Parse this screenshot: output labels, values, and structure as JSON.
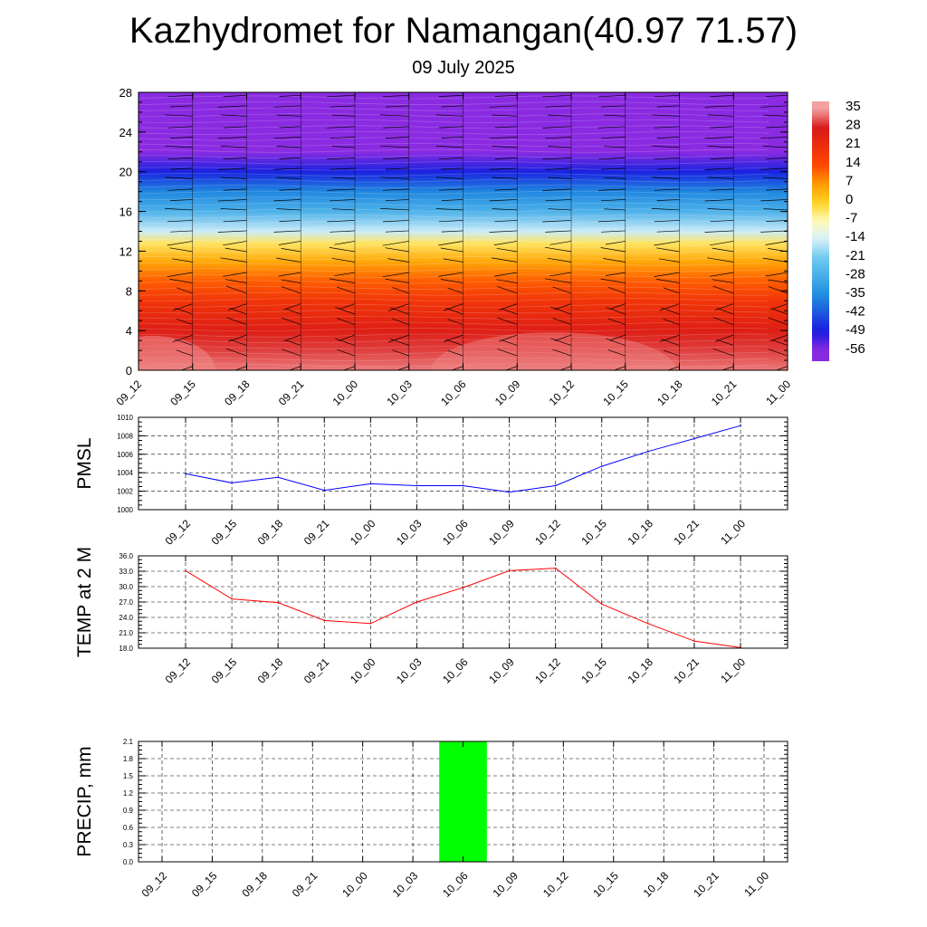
{
  "title": "Kazhydromet for Namangan(40.97 71.57)",
  "subtitle": "09 July 2025",
  "chart_data": [
    {
      "type": "heatmap",
      "name": "cross-section",
      "x_labels": [
        "09_12",
        "09_15",
        "09_18",
        "09_21",
        "10_00",
        "10_03",
        "10_06",
        "10_09",
        "10_12",
        "10_15",
        "10_18",
        "10_21",
        "11_00"
      ],
      "ylim": [
        0,
        28
      ],
      "y_ticks": [
        0,
        4,
        8,
        12,
        16,
        20,
        24,
        28
      ],
      "colorbar_labels": [
        "35",
        "28",
        "21",
        "14",
        "7",
        "0",
        "-7",
        "-14",
        "-21",
        "-28",
        "-35",
        "-42",
        "-49",
        "-56"
      ],
      "color_stops": [
        {
          "value": 35,
          "color": "#f2a0a0"
        },
        {
          "value": 28,
          "color": "#d81818"
        },
        {
          "value": 14,
          "color": "#ff4500"
        },
        {
          "value": 7,
          "color": "#ff9900"
        },
        {
          "value": 0,
          "color": "#ffd21f"
        },
        {
          "value": -7,
          "color": "#fffbb8"
        },
        {
          "value": -14,
          "color": "#d8f0fb"
        },
        {
          "value": -21,
          "color": "#6fcaf0"
        },
        {
          "value": -35,
          "color": "#1f8fe0"
        },
        {
          "value": -49,
          "color": "#1a1ae0"
        },
        {
          "value": -56,
          "color": "#8a2be2"
        }
      ],
      "temperature_profile": [
        {
          "height": 0,
          "value": 33
        },
        {
          "height": 2,
          "value": 30
        },
        {
          "height": 4,
          "value": 26
        },
        {
          "height": 7,
          "value": 19
        },
        {
          "height": 9,
          "value": 12
        },
        {
          "height": 11,
          "value": 5
        },
        {
          "height": 12.8,
          "value": -3
        },
        {
          "height": 14,
          "value": -15
        },
        {
          "height": 16,
          "value": -27
        },
        {
          "height": 18,
          "value": -36
        },
        {
          "height": 20,
          "value": -48
        },
        {
          "height": 22,
          "value": -56
        },
        {
          "height": 28,
          "value": -57
        }
      ],
      "wind_barbs": true,
      "barb_color": "#000000"
    },
    {
      "type": "line",
      "name": "pmsl",
      "ylabel": "PMSL",
      "x": [
        "09_12",
        "09_15",
        "09_18",
        "09_21",
        "10_00",
        "10_03",
        "10_06",
        "10_09",
        "10_12",
        "10_15",
        "10_18",
        "10_21",
        "11_00"
      ],
      "values": [
        1003.9,
        1002.9,
        1003.5,
        1002.1,
        1002.8,
        1002.6,
        1002.6,
        1001.9,
        1002.6,
        1004.7,
        1006.3,
        1007.7,
        1009.1
      ],
      "ylim": [
        1000,
        1010
      ],
      "y_ticks": [
        "1000",
        "1002",
        "1004",
        "1006",
        "1008",
        "1010"
      ],
      "color": "#0000ff",
      "grid": true
    },
    {
      "type": "line",
      "name": "temp2m",
      "ylabel": "TEMP at 2 M",
      "x": [
        "09_12",
        "09_15",
        "09_18",
        "09_21",
        "10_00",
        "10_03",
        "10_06",
        "10_09",
        "10_12",
        "10_15",
        "10_18",
        "10_21",
        "11_00"
      ],
      "values": [
        33.1,
        27.6,
        26.9,
        23.4,
        22.8,
        27.0,
        29.8,
        33.1,
        33.6,
        26.6,
        22.8,
        19.4,
        18.1
      ],
      "ylim": [
        18,
        36
      ],
      "y_ticks": [
        "18.0",
        "21.0",
        "24.0",
        "27.0",
        "30.0",
        "33.0",
        "36.0"
      ],
      "color": "#ff0000",
      "grid": true
    },
    {
      "type": "bar",
      "name": "precip",
      "ylabel": "PRECIP, mm",
      "categories": [
        "09_12",
        "09_15",
        "09_18",
        "09_21",
        "10_00",
        "10_03",
        "10_06",
        "10_09",
        "10_12",
        "10_15",
        "10_18",
        "10_21",
        "11_00"
      ],
      "values": [
        0,
        0,
        0,
        0,
        0,
        0,
        2.1,
        0,
        0,
        0,
        0,
        0,
        0
      ],
      "ylim": [
        0,
        2.1
      ],
      "y_ticks": [
        "0.0",
        "0.3",
        "0.6",
        "0.9",
        "1.2",
        "1.5",
        "1.8",
        "2.1"
      ],
      "color": "#00ff00",
      "grid": true
    }
  ]
}
